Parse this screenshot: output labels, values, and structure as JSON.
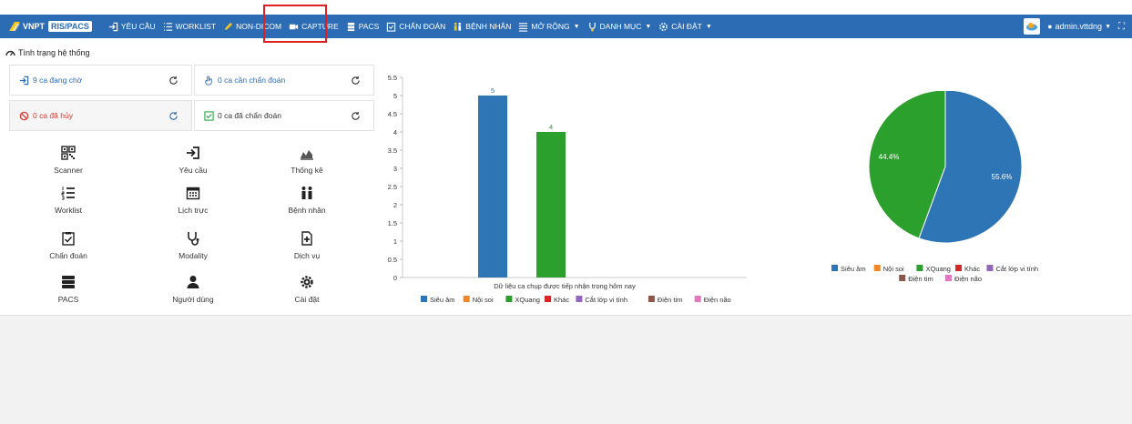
{
  "brand": {
    "name": "VNPT",
    "product": "RIS/PACS"
  },
  "nav": [
    {
      "label": "YÊU CẦU",
      "icon": "sign-in-icon"
    },
    {
      "label": "WORKLIST",
      "icon": "list-icon"
    },
    {
      "label": "NON-DICOM",
      "icon": "pencil-icon"
    },
    {
      "label": "CAPTURE",
      "icon": "video-camera-icon"
    },
    {
      "label": "PACS",
      "icon": "server-icon"
    },
    {
      "label": "CHẨN ĐOÁN",
      "icon": "clipboard-check-icon"
    },
    {
      "label": "BỆNH NHÂN",
      "icon": "users-icon"
    },
    {
      "label": "MỞ RỘNG",
      "icon": "list-alt-icon",
      "dropdown": true
    },
    {
      "label": "DANH MỤC",
      "icon": "stethoscope-icon",
      "dropdown": true
    },
    {
      "label": "CÀI ĐẶT",
      "icon": "gear-icon",
      "dropdown": true
    }
  ],
  "user": {
    "name": "admin.vttdng"
  },
  "status_title": "Tình trạng hệ thống",
  "cards": {
    "waiting": "9 ca đang chờ",
    "need_diagnosis": "0 ca cần chẩn đoán",
    "cancelled": "0 ca đã hủy",
    "diagnosed": "0 ca đã chẩn đoán"
  },
  "tiles": [
    {
      "label": "Scanner",
      "icon": "qrcode-icon"
    },
    {
      "label": "Yêu cầu",
      "icon": "sign-in-icon"
    },
    {
      "label": "Thống kê",
      "icon": "area-chart-icon"
    },
    {
      "label": "Worklist",
      "icon": "list-ol-icon"
    },
    {
      "label": "Lịch trực",
      "icon": "calendar-icon"
    },
    {
      "label": "Bệnh nhân",
      "icon": "users-icon"
    },
    {
      "label": "Chẩn đoán",
      "icon": "clipboard-check-icon"
    },
    {
      "label": "Modality",
      "icon": "stethoscope-icon"
    },
    {
      "label": "Dịch vụ",
      "icon": "file-medical-icon"
    },
    {
      "label": "PACS",
      "icon": "server-icon"
    },
    {
      "label": "Người dùng",
      "icon": "user-md-icon"
    },
    {
      "label": "Cài đặt",
      "icon": "gear-icon"
    }
  ],
  "chart_data": [
    {
      "type": "bar",
      "xlabel": "Dữ liệu ca chụp được tiếp nhận trong hôm nay",
      "ylim": [
        0,
        5.5
      ],
      "yticks": [
        "0",
        "0.5",
        "1",
        "1.5",
        "2",
        "2.5",
        "3",
        "3.5",
        "4",
        "4.5",
        "5",
        "5.5"
      ],
      "series": [
        {
          "name": "Siêu âm",
          "value": 5,
          "color": "#2e75b6"
        },
        {
          "name": "Nội soi",
          "value": 0,
          "color": "#f0882a"
        },
        {
          "name": "XQuang",
          "value": 4,
          "color": "#2ca02c"
        },
        {
          "name": "Khác",
          "value": 0,
          "color": "#d62728"
        },
        {
          "name": "Cắt lớp vi tính",
          "value": 0,
          "color": "#9467bd"
        },
        {
          "name": "Điện tim",
          "value": 0,
          "color": "#8c564b"
        },
        {
          "name": "Điện não",
          "value": 0,
          "color": "#e377c2"
        }
      ],
      "legend_position": "bottom"
    },
    {
      "type": "pie",
      "slices": [
        {
          "name": "Siêu âm",
          "value": 55.6,
          "label": "55.6%",
          "color": "#2e75b6"
        },
        {
          "name": "XQuang",
          "value": 44.4,
          "label": "44.4%",
          "color": "#2ca02c"
        }
      ],
      "legend": [
        {
          "name": "Siêu âm",
          "color": "#2e75b6"
        },
        {
          "name": "Nội soi",
          "color": "#f0882a"
        },
        {
          "name": "XQuang",
          "color": "#2ca02c"
        },
        {
          "name": "Khác",
          "color": "#d62728"
        },
        {
          "name": "Cắt lớp vi tính",
          "color": "#9467bd"
        },
        {
          "name": "Điện tim",
          "color": "#8c564b"
        },
        {
          "name": "Điện não",
          "color": "#e377c2"
        }
      ],
      "legend_position": "bottom"
    }
  ]
}
